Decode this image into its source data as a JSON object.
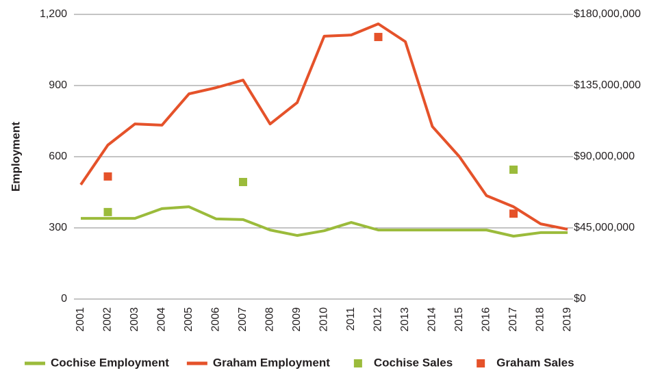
{
  "chart_data": {
    "type": "line",
    "y_label": "Employment",
    "categories": [
      "2001",
      "2002",
      "2003",
      "2004",
      "2005",
      "2006",
      "2007",
      "2008",
      "2009",
      "2010",
      "2011",
      "2012",
      "2013",
      "2014",
      "2015",
      "2016",
      "2017",
      "2018",
      "2019"
    ],
    "series": [
      {
        "name": "Cochise Employment",
        "type": "line",
        "color": "#9bbb3b",
        "values": [
          340,
          340,
          340,
          381,
          389,
          338,
          335,
          291,
          268,
          288,
          323,
          291,
          291,
          291,
          291,
          291,
          265,
          280,
          280
        ]
      },
      {
        "name": "Graham Employment",
        "type": "line",
        "color": "#e5522a",
        "values": [
          482,
          649,
          738,
          733,
          865,
          891,
          923,
          738,
          828,
          1108,
          1113,
          1160,
          1085,
          727,
          600,
          436,
          389,
          317,
          294
        ]
      },
      {
        "name": "Cochise Sales",
        "type": "scatter",
        "axis": "y2",
        "color": "#9bbb3b",
        "values": [
          null,
          55000000,
          null,
          null,
          null,
          null,
          74000000,
          null,
          null,
          null,
          null,
          null,
          null,
          null,
          null,
          null,
          81800000,
          null,
          null
        ]
      },
      {
        "name": "Graham Sales",
        "type": "scatter",
        "axis": "y2",
        "color": "#e5522a",
        "values": [
          null,
          77500000,
          null,
          null,
          null,
          null,
          null,
          null,
          null,
          null,
          null,
          165700000,
          null,
          null,
          null,
          null,
          54000000,
          null,
          null
        ]
      }
    ],
    "ylim": [
      0,
      1200
    ],
    "yticks": [
      0,
      300,
      600,
      900,
      {
        "value": 1200,
        "label": "1,200"
      }
    ],
    "y2lim": [
      0,
      180000000
    ],
    "y2ticks": [
      {
        "value": 0,
        "label": "$0"
      },
      {
        "value": 45000000,
        "label": "$45,000,000"
      },
      {
        "value": 90000000,
        "label": "$90,000,000"
      },
      {
        "value": 135000000,
        "label": "$135,000,000"
      },
      {
        "value": 180000000,
        "label": "$180,000,000"
      }
    ],
    "grid": true,
    "legend": "bottom"
  }
}
